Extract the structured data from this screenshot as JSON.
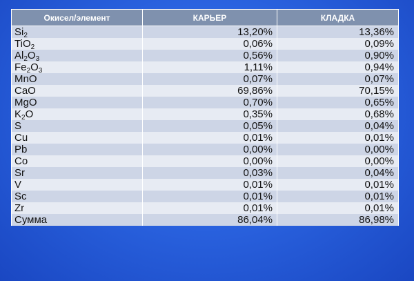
{
  "headers": [
    "Окисел/элемент",
    "КАРЬЕР",
    "КЛАДКА"
  ],
  "rows": [
    {
      "name": [
        [
          "Si",
          ""
        ],
        [
          "2",
          "sub"
        ]
      ],
      "c1": "13,20%",
      "c2": "13,36%"
    },
    {
      "name": [
        [
          "Ti",
          ""
        ],
        [
          "O",
          ""
        ],
        [
          "2",
          "sub"
        ]
      ],
      "c1": "0,06%",
      "c2": "0,09%"
    },
    {
      "name": [
        [
          "Al",
          ""
        ],
        [
          "2",
          "sub"
        ],
        [
          "O",
          ""
        ],
        [
          "3",
          "sub"
        ]
      ],
      "c1": "0,56%",
      "c2": "0,90%"
    },
    {
      "name": [
        [
          "Fe",
          ""
        ],
        [
          "2",
          "sub"
        ],
        [
          "O",
          ""
        ],
        [
          "3",
          "sub"
        ]
      ],
      "c1": "1,11%",
      "c2": "0,94%"
    },
    {
      "name": [
        [
          "MnO",
          ""
        ]
      ],
      "c1": "0,07%",
      "c2": "0,07%"
    },
    {
      "name": [
        [
          "CaO",
          ""
        ]
      ],
      "c1": "69,86%",
      "c2": "70,15%"
    },
    {
      "name": [
        [
          "MgO",
          ""
        ]
      ],
      "c1": "0,70%",
      "c2": "0,65%"
    },
    {
      "name": [
        [
          "K",
          ""
        ],
        [
          "2",
          "sub"
        ],
        [
          "O",
          ""
        ]
      ],
      "c1": "0,35%",
      "c2": "0,68%"
    },
    {
      "name": [
        [
          "S",
          ""
        ]
      ],
      "c1": "0,05%",
      "c2": "0,04%"
    },
    {
      "name": [
        [
          "Cu",
          ""
        ]
      ],
      "c1": "0,01%",
      "c2": "0,01%"
    },
    {
      "name": [
        [
          "Pb",
          ""
        ]
      ],
      "c1": "0,00%",
      "c2": "0,00%"
    },
    {
      "name": [
        [
          "Co",
          ""
        ]
      ],
      "c1": "0,00%",
      "c2": "0,00%"
    },
    {
      "name": [
        [
          "Sr",
          ""
        ]
      ],
      "c1": "0,03%",
      "c2": "0,04%"
    },
    {
      "name": [
        [
          "V",
          ""
        ]
      ],
      "c1": "0,01%",
      "c2": "0,01%"
    },
    {
      "name": [
        [
          "Sc",
          ""
        ]
      ],
      "c1": "0,01%",
      "c2": "0,01%"
    },
    {
      "name": [
        [
          "Zr",
          ""
        ]
      ],
      "c1": "0,01%",
      "c2": "0,01%"
    },
    {
      "name": [
        [
          "Сумма",
          ""
        ]
      ],
      "c1": "86,04%",
      "c2": "86,98%"
    }
  ]
}
